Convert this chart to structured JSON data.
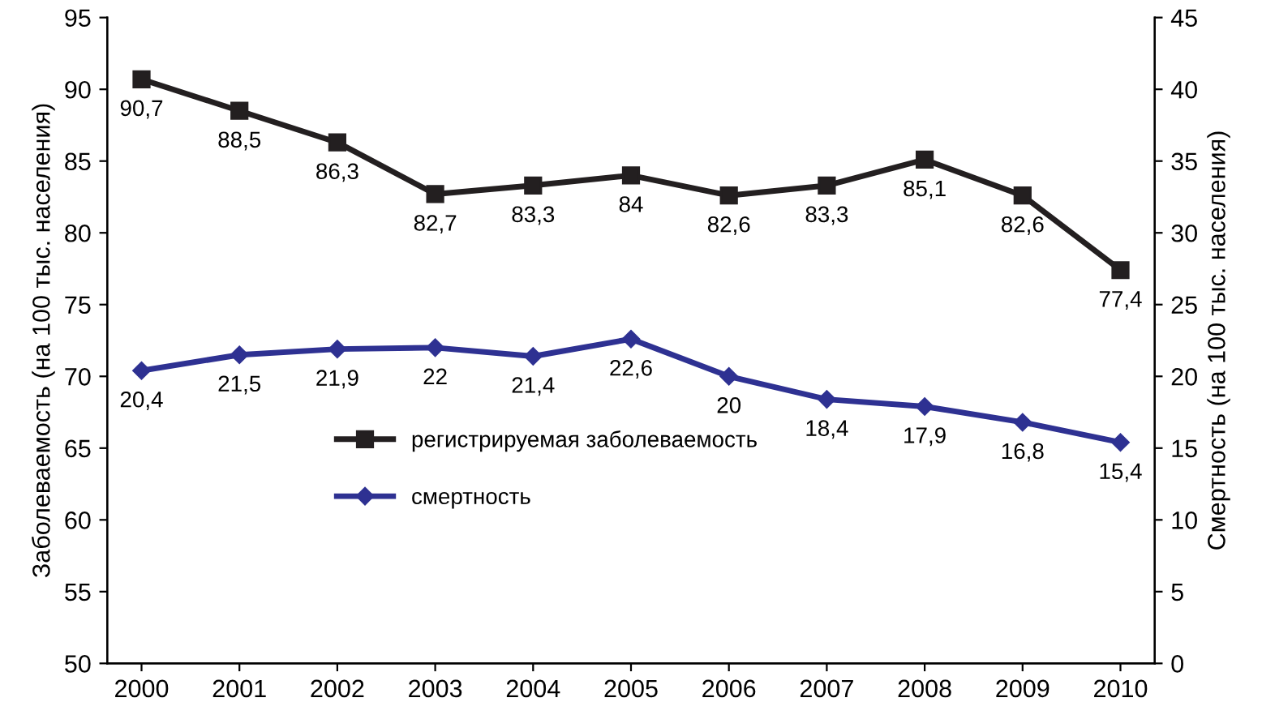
{
  "chart_data": {
    "type": "line",
    "categories": [
      "2000",
      "2001",
      "2002",
      "2003",
      "2004",
      "2005",
      "2006",
      "2007",
      "2008",
      "2009",
      "2010"
    ],
    "ylabel": "Заболеваемость (на 100 тыс. населения)",
    "y2label": "Смертность (на 100 тыс. населения)",
    "ylim": [
      50,
      95
    ],
    "yticks": [
      50,
      55,
      60,
      65,
      70,
      75,
      80,
      85,
      90,
      95
    ],
    "y2lim": [
      0,
      45
    ],
    "y2ticks": [
      0,
      5,
      10,
      15,
      20,
      25,
      30,
      35,
      40,
      45
    ],
    "series": [
      {
        "name": "регистрируемая заболеваемость",
        "color": "#231f20",
        "marker": "square",
        "values": [
          90.7,
          88.5,
          86.3,
          82.7,
          83.3,
          84,
          82.6,
          83.3,
          85.1,
          82.6,
          77.4
        ],
        "value_labels": [
          "90,7",
          "88,5",
          "86,3",
          "82,7",
          "83,3",
          "84",
          "82,6",
          "83,3",
          "85,1",
          "82,6",
          "77,4"
        ]
      },
      {
        "name": "смертность",
        "color": "#2e3192",
        "marker": "diamond",
        "axis": "y2",
        "values": [
          20.4,
          21.5,
          21.9,
          22,
          21.4,
          22.6,
          20,
          18.4,
          17.9,
          16.8,
          15.4
        ],
        "value_labels": [
          "20,4",
          "21,5",
          "21,9",
          "22",
          "21,4",
          "22,6",
          "20",
          "18,4",
          "17,9",
          "16,8",
          "15,4"
        ]
      }
    ],
    "legend": "center",
    "grid": false,
    "line_style": "solid"
  }
}
